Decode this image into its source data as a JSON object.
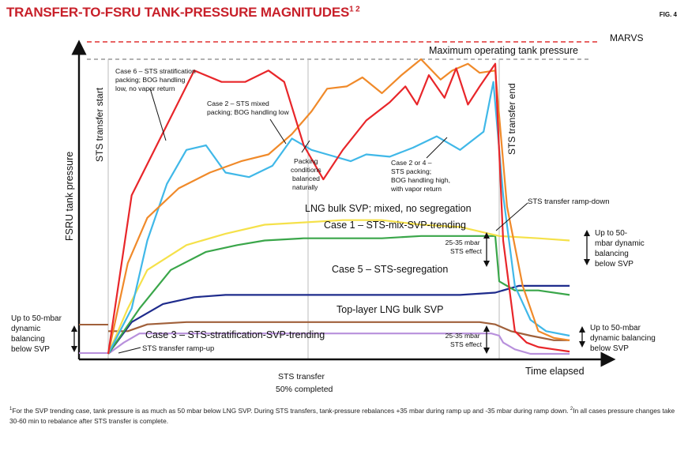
{
  "title": "TRANSFER-TO-FSRU TANK-PRESSURE MAGNITUDES",
  "title_sup": "1 2",
  "fig_label": "FIG. 4",
  "footnote": {
    "mark1": "1",
    "text1": "For the SVP trending case, tank pressure is as much as 50 mbar below LNG SVP. During STS transfers, tank-pressure rebalances +35 mbar during ramp up and -35 mbar during ramp down.",
    "mark2": "2",
    "text2": "In all cases pressure changes take 30-60 min to rebalance after STS transfer is complete."
  },
  "chart_data": {
    "type": "line",
    "ylabel": "FSRU tank pressure",
    "xlabel": "Time elapsed",
    "reference_lines": [
      {
        "label": "MARVS",
        "color": "#e03030",
        "style": "dashed"
      },
      {
        "label": "Maximum operating tank pressure",
        "color": "#999999",
        "style": "dashed"
      }
    ],
    "vertical_markers": [
      {
        "label": "STS transfer start",
        "t": 0
      },
      {
        "label": "STS transfer 50% completed",
        "t": 50
      },
      {
        "label": "STS transfer end",
        "t": 100
      }
    ],
    "series": [
      {
        "name": "Case 6 – STS stratification packing; BOG handling low, no vapor return",
        "color": "#e8262a",
        "x": [
          0,
          6,
          22,
          29,
          35,
          41,
          45,
          50,
          55,
          60,
          66,
          72,
          76,
          79,
          82,
          86,
          89,
          92,
          95,
          99,
          101,
          104,
          107,
          110,
          114,
          118
        ],
        "y": [
          0,
          70,
          125,
          120,
          120,
          125,
          120,
          92,
          77,
          90,
          103,
          111,
          118,
          110,
          123,
          113,
          126,
          110,
          118,
          128,
          50,
          10,
          5,
          3,
          2,
          1
        ]
      },
      {
        "name": "Case 2 – STS mixed packing; BOG handling low",
        "color": "#f08a2a",
        "x": [
          0,
          5,
          10,
          18,
          26,
          34,
          41,
          47,
          52,
          56,
          61,
          65,
          70,
          75,
          80,
          85,
          88,
          92,
          95,
          99,
          102,
          106,
          110,
          114,
          118
        ],
        "y": [
          0,
          40,
          60,
          73,
          80,
          85,
          88,
          97,
          107,
          117,
          118,
          122,
          115,
          123,
          130,
          121,
          125,
          128,
          124,
          125,
          65,
          30,
          10,
          7,
          6
        ]
      },
      {
        "name": "Case 2 or 4 – STS packing; BOG handling high, with vapor return",
        "color": "#40b8e8",
        "x": [
          0,
          6,
          10,
          15,
          20,
          25,
          30,
          36,
          42,
          47,
          52,
          56,
          62,
          66,
          72,
          78,
          84,
          90,
          96,
          98.5,
          101,
          104,
          108,
          112,
          118
        ],
        "y": [
          0,
          20,
          50,
          75,
          90,
          92,
          80,
          78,
          83,
          95,
          90,
          88,
          85,
          88,
          87,
          91,
          96,
          90,
          98,
          120,
          70,
          30,
          15,
          10,
          8
        ]
      },
      {
        "name": "LNG bulk SVP; mixed, no segregation",
        "color": "#f5e14a",
        "x": [
          0,
          5,
          10,
          20,
          30,
          40,
          50,
          60,
          70,
          80,
          90,
          100,
          110,
          118
        ],
        "y": [
          0,
          20,
          37,
          48,
          53,
          57,
          58,
          59,
          59,
          57,
          56,
          52,
          51,
          50
        ]
      },
      {
        "name": "Case 1 – STS-mix-SVP-trending",
        "color": "#3aa64a",
        "x": [
          0,
          8,
          16,
          25,
          33,
          40,
          50,
          60,
          70,
          80,
          90,
          99,
          100,
          104,
          110,
          118
        ],
        "y": [
          0,
          20,
          37,
          45,
          48,
          50,
          51,
          51,
          51,
          52,
          52,
          52,
          32,
          28,
          28,
          26
        ]
      },
      {
        "name": "Case 5 – STS-segregation",
        "color": "#1e2b8c",
        "x": [
          0,
          6,
          14,
          22,
          30,
          40,
          50,
          60,
          70,
          80,
          90,
          99,
          105,
          110,
          118
        ],
        "y": [
          0,
          14,
          22,
          25,
          26,
          26,
          26,
          26,
          26,
          26,
          26,
          27,
          30,
          30,
          30
        ]
      },
      {
        "name": "Top-layer LNG bulk SVP",
        "color": "#a0603a",
        "x": [
          0,
          5,
          10,
          20,
          40,
          60,
          80,
          95,
          99,
          103,
          108,
          114,
          118
        ],
        "y": [
          10,
          10,
          13,
          14,
          14,
          14,
          14,
          14,
          13,
          10,
          8,
          6,
          6
        ]
      },
      {
        "name": "Case 3 – STS-stratification-SVP-trending",
        "color": "#b890dc",
        "x": [
          0,
          4,
          8,
          20,
          40,
          60,
          80,
          98,
          100,
          101,
          104,
          108,
          118
        ],
        "y": [
          0,
          5,
          9,
          9,
          9,
          9,
          9,
          9,
          8,
          5,
          2,
          0,
          0
        ]
      }
    ],
    "annotations": [
      {
        "text": "Case 6 – STS stratification packing; BOG handling low, no vapor return",
        "series": "Case 6"
      },
      {
        "text": "Case 2 – STS mixed packing; BOG handling low",
        "series": "Case 2"
      },
      {
        "text": "Packing conditions balanced naturally"
      },
      {
        "text": "Case 2 or 4 – STS packing; BOG handling high, with vapor return"
      },
      {
        "text": "LNG bulk SVP; mixed, no segregation"
      },
      {
        "text": "Case 1 – STS-mix-SVP-trending"
      },
      {
        "text": "Case 5 – STS-segregation"
      },
      {
        "text": "Top-layer LNG bulk SVP"
      },
      {
        "text": "Case 3 – STS-stratification-SVP-trending"
      },
      {
        "text": "STS transfer ramp-up"
      },
      {
        "text": "STS transfer ramp-down"
      },
      {
        "text": "25-35 mbar STS effect",
        "position": "upper"
      },
      {
        "text": "25-35 mbar STS effect",
        "position": "lower"
      },
      {
        "text": "Up to 50-mbar dynamic balancing below SVP",
        "position": "left"
      },
      {
        "text": "Up to 50-mbar dynamic balancing below SVP",
        "position": "right-upper"
      },
      {
        "text": "Up to 50-mbar dynamic balancing below SVP",
        "position": "right-lower"
      }
    ]
  }
}
